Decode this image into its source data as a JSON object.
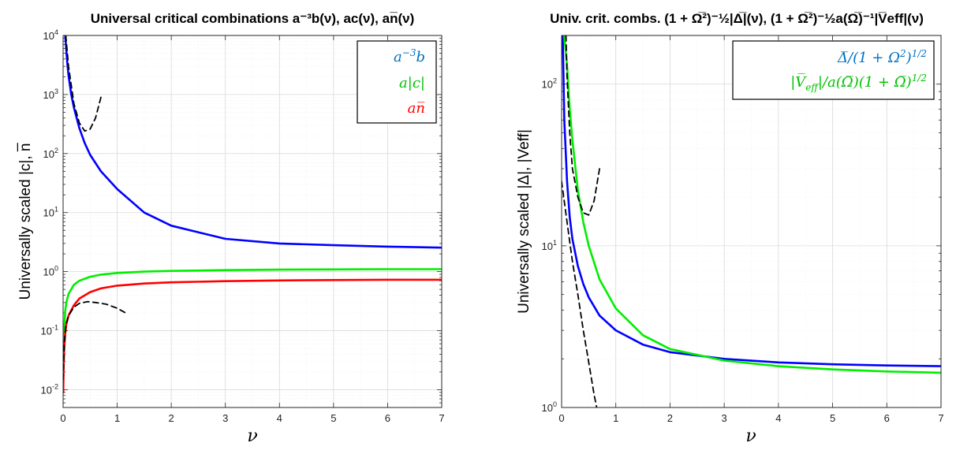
{
  "chart_data": [
    {
      "type": "line",
      "title": "Universal critical combinations a⁻³b(ν), ac(ν), an̅(ν)",
      "xlabel": "ν",
      "ylabel": "Universally scaled |c|, n̅",
      "xlim": [
        0,
        7
      ],
      "ylim": [
        0.005,
        10000
      ],
      "yscale": "log",
      "grid": true,
      "xticks": [
        "0",
        "1",
        "2",
        "3",
        "4",
        "5",
        "6",
        "7"
      ],
      "yticks": [
        {
          "base": "10",
          "exp": "-2"
        },
        {
          "base": "10",
          "exp": "-1"
        },
        {
          "base": "10",
          "exp": "0"
        },
        {
          "base": "10",
          "exp": "1"
        },
        {
          "base": "10",
          "exp": "2"
        },
        {
          "base": "10",
          "exp": "3"
        },
        {
          "base": "10",
          "exp": "4"
        }
      ],
      "legend_position": "top-right",
      "series": [
        {
          "name": "a⁻³b",
          "color": "#0000ff",
          "style": "solid",
          "x": [
            0.04,
            0.06,
            0.08,
            0.1,
            0.15,
            0.2,
            0.3,
            0.4,
            0.5,
            0.7,
            1.0,
            1.5,
            2.0,
            3.0,
            4.0,
            5.0,
            6.0,
            7.0
          ],
          "y": [
            10000,
            5500,
            3200,
            2100,
            1000,
            600,
            270,
            150,
            95,
            50,
            25,
            10,
            6,
            3.6,
            3.0,
            2.8,
            2.65,
            2.55
          ]
        },
        {
          "name": "a|c|",
          "color": "#00ee00",
          "style": "solid",
          "x": [
            0.003,
            0.01,
            0.02,
            0.04,
            0.06,
            0.1,
            0.2,
            0.3,
            0.5,
            0.7,
            1.0,
            1.5,
            2.0,
            3.0,
            4.0,
            5.0,
            6.0,
            7.0
          ],
          "y": [
            0.02,
            0.05,
            0.1,
            0.22,
            0.3,
            0.42,
            0.6,
            0.7,
            0.82,
            0.89,
            0.95,
            1.0,
            1.03,
            1.06,
            1.08,
            1.09,
            1.1,
            1.1
          ]
        },
        {
          "name": "an̅",
          "color": "#ff0000",
          "style": "solid",
          "x": [
            0.003,
            0.01,
            0.02,
            0.04,
            0.06,
            0.1,
            0.2,
            0.3,
            0.5,
            0.7,
            1.0,
            1.5,
            2.0,
            3.0,
            4.0,
            5.0,
            6.0,
            7.0
          ],
          "y": [
            0.009,
            0.025,
            0.05,
            0.09,
            0.13,
            0.18,
            0.27,
            0.35,
            0.45,
            0.52,
            0.58,
            0.63,
            0.66,
            0.69,
            0.71,
            0.72,
            0.73,
            0.73
          ]
        },
        {
          "name": "asymptote-b",
          "color": "#000000",
          "style": "dashed",
          "x": [
            0.05,
            0.1,
            0.2,
            0.3,
            0.4,
            0.5,
            0.6,
            0.7
          ],
          "y": [
            10000,
            3000,
            700,
            330,
            240,
            260,
            400,
            900
          ]
        },
        {
          "name": "asymptote-small",
          "color": "#000000",
          "style": "dashed",
          "x": [
            0.003,
            0.02,
            0.05,
            0.1,
            0.2,
            0.3,
            0.45,
            0.6,
            0.8,
            1.0,
            1.2
          ],
          "y": [
            0.015,
            0.06,
            0.12,
            0.18,
            0.25,
            0.29,
            0.31,
            0.3,
            0.28,
            0.24,
            0.19
          ]
        }
      ]
    },
    {
      "type": "line",
      "title": "Univ. crit. combs. (1 + Ω̅²)⁻½|Δ̅|(ν), (1 + Ω̅²)⁻½a(Ω̅)⁻¹|V̅eff|(ν)",
      "xlabel": "ν",
      "ylabel": "Universally scaled |Δ|, |Veff|",
      "xlim": [
        0,
        7
      ],
      "ylim": [
        1,
        200
      ],
      "yscale": "log",
      "grid": true,
      "xticks": [
        "0",
        "1",
        "2",
        "3",
        "4",
        "5",
        "6",
        "7"
      ],
      "yticks": [
        {
          "base": "10",
          "exp": "0"
        },
        {
          "base": "10",
          "exp": "1"
        },
        {
          "base": "10",
          "exp": "2"
        }
      ],
      "legend_position": "top-right",
      "series": [
        {
          "name": "Δ̅/(1 + Ω²)¹ᐟ²",
          "color": "#0000ff",
          "style": "solid",
          "x": [
            0.02,
            0.05,
            0.1,
            0.15,
            0.2,
            0.3,
            0.4,
            0.5,
            0.7,
            1.0,
            1.5,
            2.0,
            3.0,
            4.0,
            5.0,
            6.0,
            7.0
          ],
          "y": [
            200,
            60,
            25,
            15,
            11,
            7.5,
            5.8,
            4.8,
            3.7,
            3.0,
            2.45,
            2.2,
            2.0,
            1.9,
            1.85,
            1.82,
            1.8
          ]
        },
        {
          "name": "|V̅eff|/a(Ω̅)(1 + Ω̅)¹ᐟ²",
          "color": "#00ee00",
          "style": "solid",
          "x": [
            0.05,
            0.1,
            0.15,
            0.2,
            0.3,
            0.4,
            0.5,
            0.7,
            1.0,
            1.5,
            2.0,
            3.0,
            4.0,
            5.0,
            6.0,
            7.0
          ],
          "y": [
            200,
            130,
            70,
            45,
            22,
            14,
            10,
            6.2,
            4.1,
            2.8,
            2.3,
            1.95,
            1.8,
            1.72,
            1.67,
            1.64
          ]
        },
        {
          "name": "asymptote-large",
          "color": "#000000",
          "style": "dashed",
          "x": [
            0.08,
            0.1,
            0.15,
            0.2,
            0.3,
            0.4,
            0.5,
            0.6,
            0.7
          ],
          "y": [
            200,
            110,
            50,
            30,
            20,
            16,
            15.5,
            19,
            30
          ]
        },
        {
          "name": "asymptote-linear",
          "color": "#000000",
          "style": "dashed",
          "x": [
            0.0,
            0.1,
            0.2,
            0.3,
            0.4,
            0.5,
            0.6,
            0.66
          ],
          "y": [
            25,
            14,
            8,
            5,
            3,
            1.9,
            1.2,
            0.95
          ]
        }
      ]
    }
  ],
  "legend1": {
    "entry1": {
      "main": "a",
      "sup": "−3",
      "tail": "b"
    },
    "entry2": "a|c|",
    "entry3": "an̅"
  },
  "legend2": {
    "entry1": {
      "main": "Δ̅/(1 + Ω",
      "sup1": "2",
      "mid": ")",
      "sup2": "1/2"
    },
    "entry2": {
      "main": "|V̅",
      "sub": "eff",
      "mid": "|/a(Ω̅)(1 + Ω̅)",
      "sup": "1/2"
    }
  }
}
